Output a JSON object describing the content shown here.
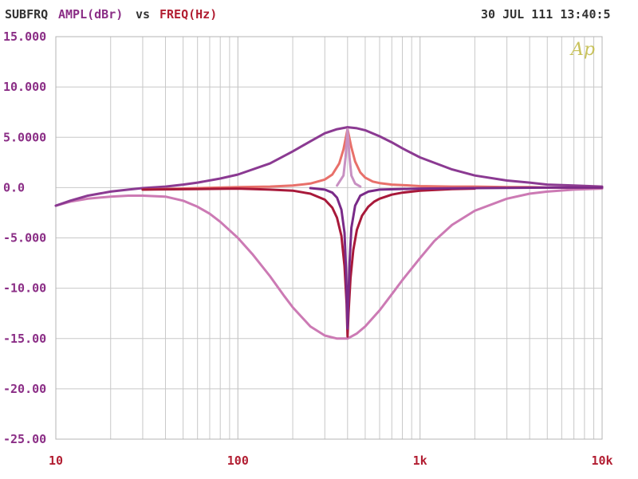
{
  "header": {
    "prefix": "SUBFRQ",
    "yquantity": "AMPL(dBr)",
    "vs": "vs",
    "xquantity": "FREQ(Hz)",
    "date": "30 JUL 111 13:40:5"
  },
  "logo": "Ap",
  "colors": {
    "text_label": "#333333",
    "y_axis": "#8b2e86",
    "x_axis": "#b21e32",
    "grid": "#c8c8c8",
    "logo": "#c8c25a"
  },
  "chart_data": {
    "type": "line",
    "title": "SUBFRQ AMPL(dBr) vs FREQ(Hz)",
    "xlabel": "FREQ(Hz)",
    "ylabel": "AMPL(dBr)",
    "xscale": "log",
    "xlim": [
      10,
      10000
    ],
    "ylim": [
      -25,
      15
    ],
    "grid": true,
    "xticks": [
      {
        "value": 10,
        "label": "10"
      },
      {
        "value": 100,
        "label": "100"
      },
      {
        "value": 1000,
        "label": "1k"
      },
      {
        "value": 10000,
        "label": "10k"
      }
    ],
    "yticks": [
      {
        "value": 15,
        "label": "15.000"
      },
      {
        "value": 10,
        "label": "10.000"
      },
      {
        "value": 5,
        "label": "5.0000"
      },
      {
        "value": 0,
        "label": "0.0"
      },
      {
        "value": -5,
        "label": "-5.000"
      },
      {
        "value": -10,
        "label": "-10.00"
      },
      {
        "value": -15,
        "label": "-15.00"
      },
      {
        "value": -20,
        "label": "-20.00"
      },
      {
        "value": -25,
        "label": "-25.00"
      }
    ],
    "series": [
      {
        "color": "#cc7ab4",
        "x": [
          10,
          12,
          15,
          20,
          25,
          30,
          40,
          50,
          60,
          70,
          80,
          100,
          120,
          150,
          180,
          200,
          250,
          300,
          350,
          400,
          450,
          500,
          600,
          700,
          800,
          1000,
          1200,
          1500,
          2000,
          3000,
          4000,
          5000,
          7000,
          10000
        ],
        "y": [
          -1.8,
          -1.4,
          -1.1,
          -0.9,
          -0.8,
          -0.8,
          -0.9,
          -1.3,
          -1.9,
          -2.6,
          -3.4,
          -5.0,
          -6.6,
          -8.8,
          -10.8,
          -11.9,
          -13.8,
          -14.7,
          -15.0,
          -15.0,
          -14.5,
          -13.8,
          -12.2,
          -10.6,
          -9.2,
          -7.0,
          -5.3,
          -3.7,
          -2.3,
          -1.1,
          -0.6,
          -0.4,
          -0.2,
          -0.1
        ]
      },
      {
        "color": "#8b3a92",
        "x": [
          10,
          12,
          15,
          20,
          25,
          30,
          40,
          50,
          60,
          80,
          100,
          150,
          200,
          250,
          300,
          350,
          400,
          450,
          500,
          600,
          700,
          800,
          1000,
          1500,
          2000,
          3000,
          4000,
          5000,
          7000,
          10000
        ],
        "y": [
          -1.8,
          -1.3,
          -0.8,
          -0.4,
          -0.2,
          -0.05,
          0.1,
          0.3,
          0.5,
          0.9,
          1.3,
          2.4,
          3.6,
          4.6,
          5.4,
          5.8,
          6.0,
          5.9,
          5.7,
          5.1,
          4.5,
          3.9,
          3.0,
          1.8,
          1.2,
          0.7,
          0.5,
          0.3,
          0.2,
          0.1
        ]
      },
      {
        "color": "#e8706a",
        "x": [
          30,
          100,
          150,
          200,
          250,
          300,
          330,
          360,
          380,
          400,
          420,
          440,
          470,
          500,
          550,
          600,
          700,
          800,
          1000,
          1500,
          2000,
          3000,
          4000,
          5000,
          7000,
          10000
        ],
        "y": [
          -0.2,
          0.05,
          0.1,
          0.2,
          0.4,
          0.8,
          1.3,
          2.4,
          3.8,
          5.8,
          4.0,
          2.6,
          1.5,
          1.0,
          0.6,
          0.45,
          0.3,
          0.25,
          0.15,
          0.1,
          0.1,
          0.05,
          0.05,
          0.0,
          0.0,
          0.0
        ]
      },
      {
        "color": "#c890c2",
        "x": [
          350,
          380,
          390,
          400,
          410,
          420,
          440,
          470
        ],
        "y": [
          0.2,
          1.2,
          3.0,
          5.8,
          3.0,
          1.2,
          0.4,
          0.1
        ]
      },
      {
        "color": "#a8193a",
        "x": [
          30,
          100,
          150,
          200,
          250,
          300,
          330,
          350,
          370,
          385,
          395,
          400,
          405,
          415,
          430,
          450,
          480,
          520,
          560,
          600,
          700,
          800,
          1000,
          1500,
          2000
        ],
        "y": [
          -0.2,
          -0.1,
          -0.2,
          -0.3,
          -0.6,
          -1.2,
          -2.0,
          -3.0,
          -4.8,
          -7.8,
          -11.5,
          -14.8,
          -12.5,
          -9.0,
          -6.2,
          -4.2,
          -2.8,
          -1.9,
          -1.4,
          -1.1,
          -0.7,
          -0.5,
          -0.3,
          -0.15,
          -0.1
        ]
      },
      {
        "color": "#7a2a88",
        "x": [
          250,
          300,
          330,
          350,
          370,
          385,
          392,
          398,
          400,
          403,
          410,
          420,
          440,
          470,
          520,
          600,
          1000,
          2000,
          5000,
          10000
        ],
        "y": [
          -0.05,
          -0.2,
          -0.5,
          -1.0,
          -2.2,
          -4.5,
          -8.0,
          -12.5,
          -14.0,
          -12.0,
          -7.5,
          -4.0,
          -1.8,
          -0.8,
          -0.4,
          -0.2,
          -0.1,
          -0.05,
          0.0,
          0.0
        ]
      }
    ]
  }
}
